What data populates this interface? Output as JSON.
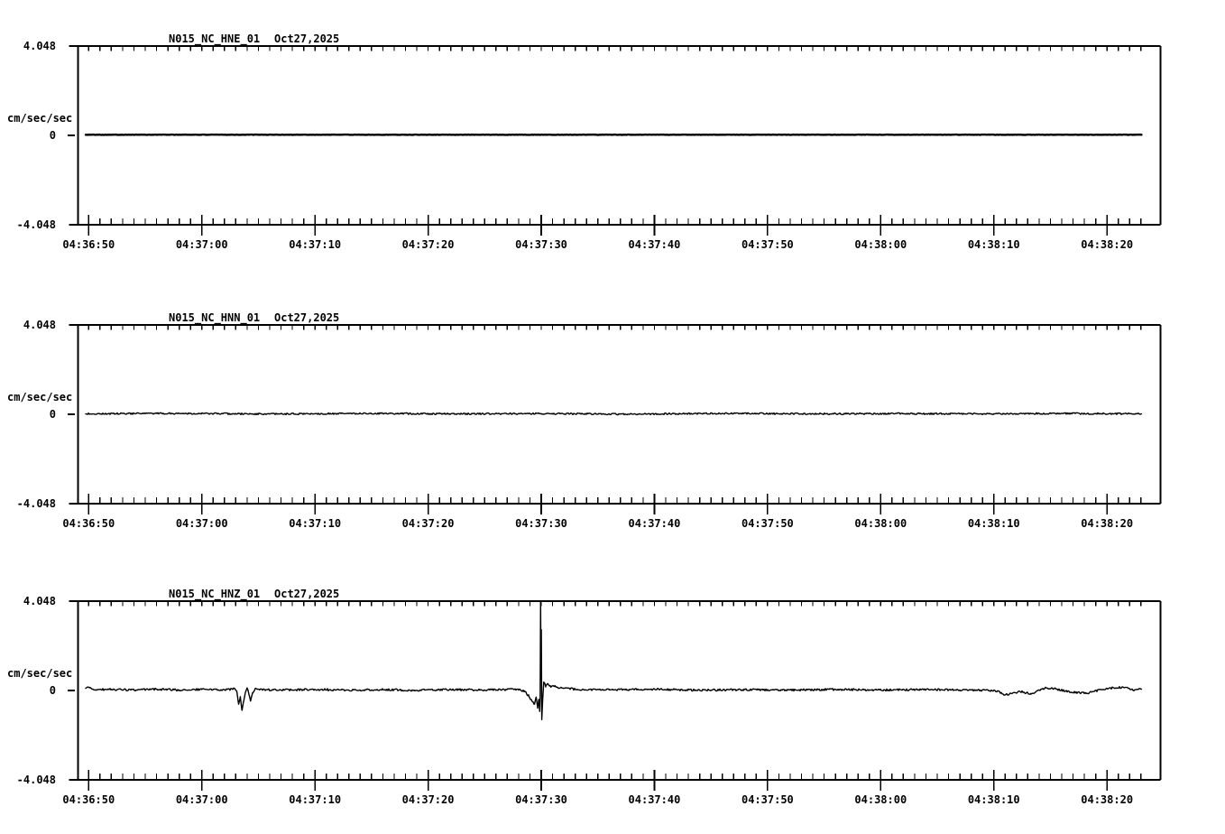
{
  "window": {
    "background_color": "#ffffff",
    "foreground_color": "#000000"
  },
  "chart_data": [
    {
      "type": "line",
      "station": "N015_NC_HNE_01",
      "date": "Oct27,2025",
      "ylabel": "cm/sec/sec",
      "ytick_labels": [
        "4.048",
        "0",
        "-4.048"
      ],
      "ylim": [
        -4.048,
        4.048
      ],
      "x_start": "04:36:50",
      "x_major_interval_seconds": 10,
      "x_minor_interval_seconds": 1,
      "xtick_labels": [
        "04:36:50",
        "04:37:00",
        "04:37:10",
        "04:37:20",
        "04:37:30",
        "04:37:40",
        "04:37:50",
        "04:38:00",
        "04:38:10",
        "04:38:20"
      ],
      "trace": {
        "description": "flat quiet trace at zero",
        "seed": 101,
        "noise_amp": 0.008,
        "stroke_width": 2.4,
        "keypoints": [
          [
            -0.26,
            0.03
          ],
          [
            30,
            0.03
          ],
          [
            60,
            0.03
          ],
          [
            93.05,
            0.03
          ]
        ]
      }
    },
    {
      "type": "line",
      "station": "N015_NC_HNN_01",
      "date": "Oct27,2025",
      "ylabel": "cm/sec/sec",
      "ytick_labels": [
        "4.048",
        "0",
        "-4.048"
      ],
      "ylim": [
        -4.048,
        4.048
      ],
      "x_start": "04:36:50",
      "x_major_interval_seconds": 10,
      "x_minor_interval_seconds": 1,
      "xtick_labels": [
        "04:36:50",
        "04:37:00",
        "04:37:10",
        "04:37:20",
        "04:37:30",
        "04:37:40",
        "04:37:50",
        "04:38:00",
        "04:38:10",
        "04:38:20"
      ],
      "trace": {
        "description": "quiet trace with fine background noise",
        "seed": 202,
        "noise_amp": 0.035,
        "stroke_width": 1.4,
        "keypoints": [
          [
            -0.26,
            0.02
          ],
          [
            8,
            0.04
          ],
          [
            16,
            0.01
          ],
          [
            24,
            0.04
          ],
          [
            32,
            0.02
          ],
          [
            40,
            0.03
          ],
          [
            48,
            0.01
          ],
          [
            56,
            0.04
          ],
          [
            64,
            0.02
          ],
          [
            72,
            0.03
          ],
          [
            80,
            0.02
          ],
          [
            86,
            0.04
          ],
          [
            93.05,
            0.02
          ]
        ]
      }
    },
    {
      "type": "line",
      "station": "N015_NC_HNZ_01",
      "date": "Oct27,2025",
      "ylabel": "cm/sec/sec",
      "ytick_labels": [
        "4.048",
        "0",
        "-4.048"
      ],
      "ylim": [
        -4.048,
        4.048
      ],
      "x_start": "04:36:50",
      "x_major_interval_seconds": 10,
      "x_minor_interval_seconds": 1,
      "xtick_labels": [
        "04:36:50",
        "04:37:00",
        "04:37:10",
        "04:37:20",
        "04:37:30",
        "04:37:40",
        "04:37:50",
        "04:38:00",
        "04:38:10",
        "04:38:20"
      ],
      "trace": {
        "description": "noisy trace; small dip event near 04:37:03-04 and sharp clipped spike event at 04:37:30",
        "seed": 303,
        "noise_amp": 0.045,
        "stroke_width": 1.4,
        "keypoints": [
          [
            -0.26,
            0.1
          ],
          [
            0.1,
            0.14
          ],
          [
            0.4,
            0.04
          ],
          [
            2,
            0.05
          ],
          [
            4,
            0.02
          ],
          [
            6,
            0.06
          ],
          [
            8,
            0.02
          ],
          [
            10,
            0.05
          ],
          [
            12,
            0.03
          ],
          [
            12.9,
            0.08
          ],
          [
            13.1,
            -0.05
          ],
          [
            13.25,
            -0.62
          ],
          [
            13.4,
            -0.28
          ],
          [
            13.55,
            -0.9
          ],
          [
            13.7,
            -0.5
          ],
          [
            13.85,
            -0.1
          ],
          [
            14.0,
            0.12
          ],
          [
            14.15,
            -0.15
          ],
          [
            14.3,
            -0.48
          ],
          [
            14.5,
            -0.12
          ],
          [
            14.75,
            0.1
          ],
          [
            15.1,
            0.03
          ],
          [
            17,
            0.02
          ],
          [
            20,
            0.05
          ],
          [
            23,
            0.01
          ],
          [
            26,
            0.04
          ],
          [
            29,
            0.01
          ],
          [
            32,
            0.04
          ],
          [
            35,
            0.02
          ],
          [
            37.8,
            0.05
          ],
          [
            38.5,
            -0.02
          ],
          [
            38.9,
            -0.25
          ],
          [
            39.2,
            -0.5
          ],
          [
            39.4,
            -0.62
          ],
          [
            39.55,
            -0.3
          ],
          [
            39.68,
            -0.8
          ],
          [
            39.78,
            -0.4
          ],
          [
            39.86,
            -0.95
          ],
          [
            39.9,
            -0.35
          ],
          [
            39.94,
            4.03
          ],
          [
            39.98,
            0.5
          ],
          [
            40.01,
            2.75
          ],
          [
            40.05,
            -1.32
          ],
          [
            40.12,
            -0.5
          ],
          [
            40.22,
            0.38
          ],
          [
            40.4,
            0.2
          ],
          [
            40.6,
            0.3
          ],
          [
            40.85,
            0.15
          ],
          [
            41.2,
            0.22
          ],
          [
            41.6,
            0.1
          ],
          [
            42.2,
            0.12
          ],
          [
            43,
            0.05
          ],
          [
            46,
            0.03
          ],
          [
            50,
            0.06
          ],
          [
            54,
            0.01
          ],
          [
            58,
            0.04
          ],
          [
            62,
            0.02
          ],
          [
            66,
            0.05
          ],
          [
            70,
            0.02
          ],
          [
            74,
            0.04
          ],
          [
            78,
            0.02
          ],
          [
            80.3,
            -0.02
          ],
          [
            81.0,
            -0.2
          ],
          [
            81.6,
            -0.14
          ],
          [
            82.3,
            -0.04
          ],
          [
            83.3,
            -0.16
          ],
          [
            83.8,
            -0.02
          ],
          [
            84.6,
            0.12
          ],
          [
            85.6,
            0.06
          ],
          [
            86.8,
            -0.08
          ],
          [
            88.2,
            -0.12
          ],
          [
            89.5,
            0.04
          ],
          [
            90.6,
            0.12
          ],
          [
            91.6,
            0.14
          ],
          [
            92.4,
            0.02
          ],
          [
            93.05,
            0.06
          ]
        ]
      }
    }
  ]
}
